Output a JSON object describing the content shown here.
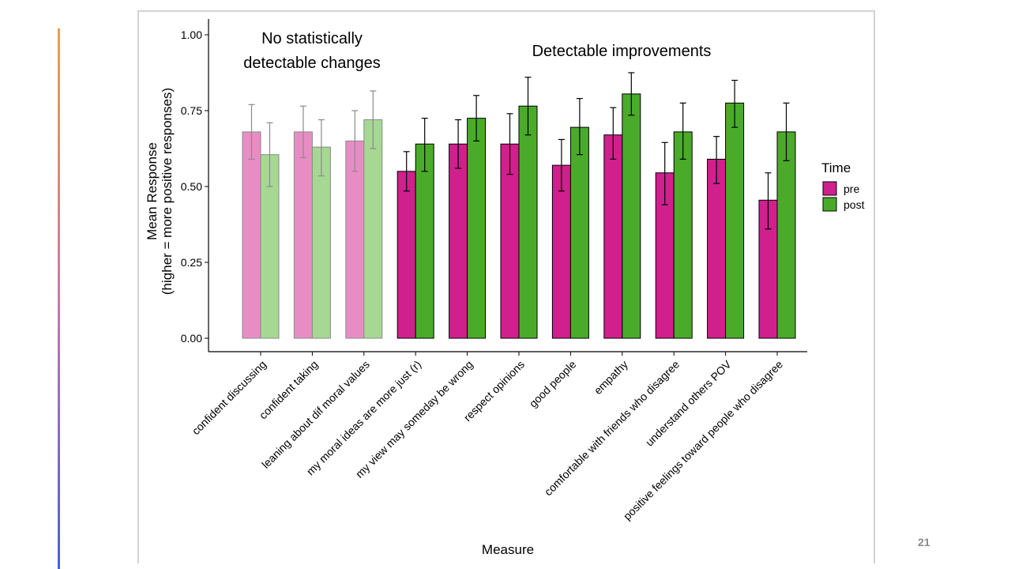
{
  "page_number": "21",
  "chart_data": {
    "type": "bar",
    "title": "",
    "xlabel": "Measure",
    "ylabel_lines": [
      "Mean Response",
      "(higher = more positive responses)"
    ],
    "ylim": [
      0,
      1
    ],
    "yticks": [
      0,
      0.25,
      0.5,
      0.75,
      1
    ],
    "ytick_labels": [
      "0.00",
      "0.25",
      "0.50",
      "0.75",
      "1.00"
    ],
    "categories": [
      "confident discussing",
      "confident taking",
      "leaning about dif moral values",
      "my moral ideas are more just (r)",
      "my view may someday be wrong",
      "respect opinions",
      "good people",
      "empathy",
      "comfortable with friends who disagree",
      "understand others POV",
      "positive feelings toward people who disagree"
    ],
    "faded_categories": [
      0,
      1,
      2
    ],
    "series": [
      {
        "name": "pre",
        "color": "#d0208d",
        "faded_color": "#e88dc4",
        "values": [
          0.68,
          0.68,
          0.65,
          0.55,
          0.64,
          0.64,
          0.57,
          0.67,
          0.545,
          0.59,
          0.455
        ],
        "error_low": [
          0.59,
          0.595,
          0.55,
          0.485,
          0.56,
          0.54,
          0.485,
          0.59,
          0.44,
          0.51,
          0.36
        ],
        "error_high": [
          0.77,
          0.765,
          0.75,
          0.615,
          0.72,
          0.74,
          0.655,
          0.76,
          0.645,
          0.665,
          0.545
        ]
      },
      {
        "name": "post",
        "color": "#4aab2a",
        "faded_color": "#a6d893",
        "values": [
          0.605,
          0.63,
          0.72,
          0.64,
          0.725,
          0.765,
          0.695,
          0.805,
          0.68,
          0.775,
          0.68
        ],
        "error_low": [
          0.5,
          0.535,
          0.625,
          0.55,
          0.65,
          0.67,
          0.605,
          0.735,
          0.59,
          0.695,
          0.585
        ],
        "error_high": [
          0.71,
          0.72,
          0.815,
          0.725,
          0.8,
          0.86,
          0.79,
          0.875,
          0.775,
          0.85,
          0.775
        ]
      }
    ],
    "annotations": [
      {
        "lines": [
          "No statistically",
          "detectable changes"
        ]
      },
      {
        "lines": [
          "Detectable improvements"
        ]
      }
    ],
    "legend": {
      "title": "Time",
      "entries": [
        "pre",
        "post"
      ],
      "position": "right"
    }
  }
}
